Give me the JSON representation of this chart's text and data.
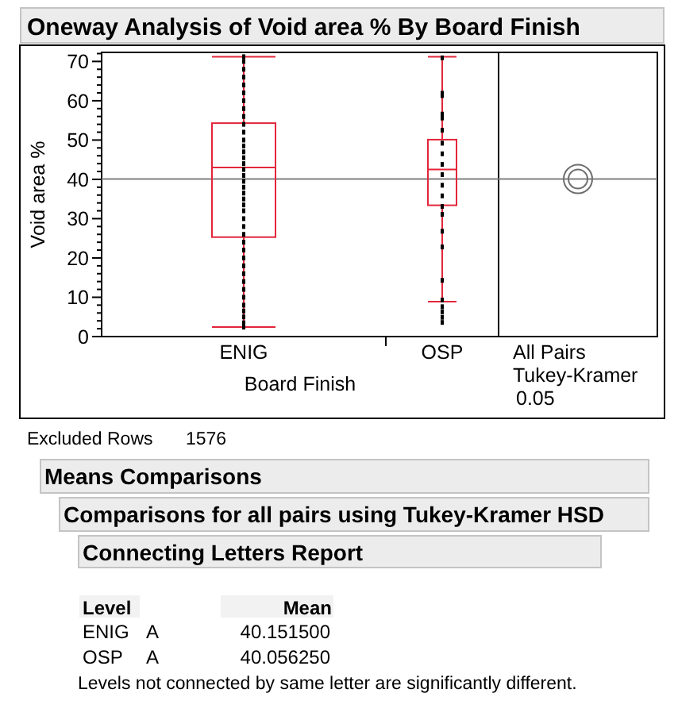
{
  "chart_data": [
    {
      "type": "box",
      "title": "Oneway Analysis of Void area % By Board Finish",
      "xlabel": "Board Finish",
      "ylabel": "Void area %",
      "categories": [
        "ENIG",
        "OSP"
      ],
      "ylim": [
        0,
        72.3
      ],
      "yticks": [
        0,
        {
          "value": 2,
          "label": null
        },
        {
          "value": 4,
          "label": null
        },
        {
          "value": 6,
          "label": null
        },
        {
          "value": 8,
          "label": null
        },
        10,
        {
          "value": 12,
          "label": null
        },
        {
          "value": 14,
          "label": null
        },
        {
          "value": 16,
          "label": null
        },
        {
          "value": 18,
          "label": null
        },
        20,
        {
          "value": 22,
          "label": null
        },
        {
          "value": 24,
          "label": null
        },
        {
          "value": 26,
          "label": null
        },
        {
          "value": 28,
          "label": null
        },
        30,
        {
          "value": 32,
          "label": null
        },
        {
          "value": 34,
          "label": null
        },
        {
          "value": 36,
          "label": null
        },
        {
          "value": 38,
          "label": null
        },
        40,
        {
          "value": 42,
          "label": null
        },
        {
          "value": 44,
          "label": null
        },
        {
          "value": 46,
          "label": null
        },
        {
          "value": 48,
          "label": null
        },
        50,
        {
          "value": 52,
          "label": null
        },
        {
          "value": 54,
          "label": null
        },
        {
          "value": 56,
          "label": null
        },
        {
          "value": 58,
          "label": null
        },
        60,
        {
          "value": 62,
          "label": null
        },
        {
          "value": 64,
          "label": null
        },
        {
          "value": 66,
          "label": null
        },
        {
          "value": 68,
          "label": null
        },
        70,
        {
          "value": 72,
          "label": null
        }
      ],
      "series": [
        {
          "type": "box",
          "color": "#e3263b",
          "boxes": [
            {
              "low": 2.4,
              "q1": 25.3,
              "median": 43.0,
              "q3": 54.3,
              "high": 71.2
            },
            {
              "low": 8.9,
              "q1": 33.4,
              "median": 42.5,
              "q3": 50.1,
              "high": 71.2
            }
          ]
        },
        {
          "type": "scatter",
          "color": "#000000",
          "x": [
            "ENIG",
            "ENIG",
            "ENIG",
            "ENIG",
            "ENIG",
            "ENIG",
            "ENIG",
            "ENIG",
            "ENIG",
            "ENIG",
            "ENIG",
            "ENIG",
            "ENIG",
            "ENIG",
            "ENIG",
            "ENIG",
            "ENIG",
            "ENIG",
            "ENIG",
            "ENIG",
            "ENIG",
            "ENIG",
            "ENIG",
            "ENIG",
            "ENIG",
            "ENIG",
            "ENIG",
            "ENIG",
            "ENIG",
            "ENIG",
            "ENIG",
            "ENIG",
            "ENIG",
            "ENIG",
            "ENIG",
            "ENIG",
            "ENIG",
            "ENIG",
            "ENIG",
            "ENIG",
            "OSP",
            "OSP",
            "OSP",
            "OSP",
            "OSP",
            "OSP",
            "OSP",
            "OSP",
            "OSP",
            "OSP",
            "OSP",
            "OSP",
            "OSP",
            "OSP",
            "OSP",
            "OSP",
            "OSP",
            "OSP",
            "OSP",
            "OSP",
            "OSP",
            "OSP"
          ],
          "values": [
            2.4,
            3.5,
            5,
            6.5,
            8,
            10,
            12,
            14,
            16,
            18,
            20,
            22,
            24,
            26,
            28,
            30,
            32,
            33.5,
            35,
            36.5,
            38,
            39.5,
            41,
            42.5,
            44,
            45.5,
            47,
            48.5,
            50,
            52,
            54,
            56,
            58,
            60,
            62,
            64,
            66,
            68,
            70,
            71.2,
            70.9,
            61.9,
            61.3,
            56.6,
            55.6,
            52.5,
            49.2,
            46.5,
            43.8,
            41.2,
            38.5,
            35.8,
            33.1,
            31.1,
            26.8,
            22.8,
            14.3,
            9.3,
            7.6,
            6.3,
            4.9,
            3.6
          ]
        }
      ],
      "marker": "square",
      "ref_lines": [
        {
          "axis": "y",
          "value": 40.1,
          "color": "#808080"
        }
      ],
      "annotations": [
        "All Pairs",
        "Tukey-Kramer",
        "0.05"
      ]
    },
    {
      "type": "other",
      "title": "Means Comparisons",
      "subtitle": "Comparisons for all pairs using Tukey-Kramer HSD",
      "annotations": [
        "Excluded Rows",
        "1576",
        "Connecting Letters Report",
        "Level",
        "Mean",
        "ENIG",
        "A",
        "40.151500",
        "OSP",
        "A",
        "40.056250",
        "Levels not connected by same letter are significantly different."
      ]
    }
  ]
}
